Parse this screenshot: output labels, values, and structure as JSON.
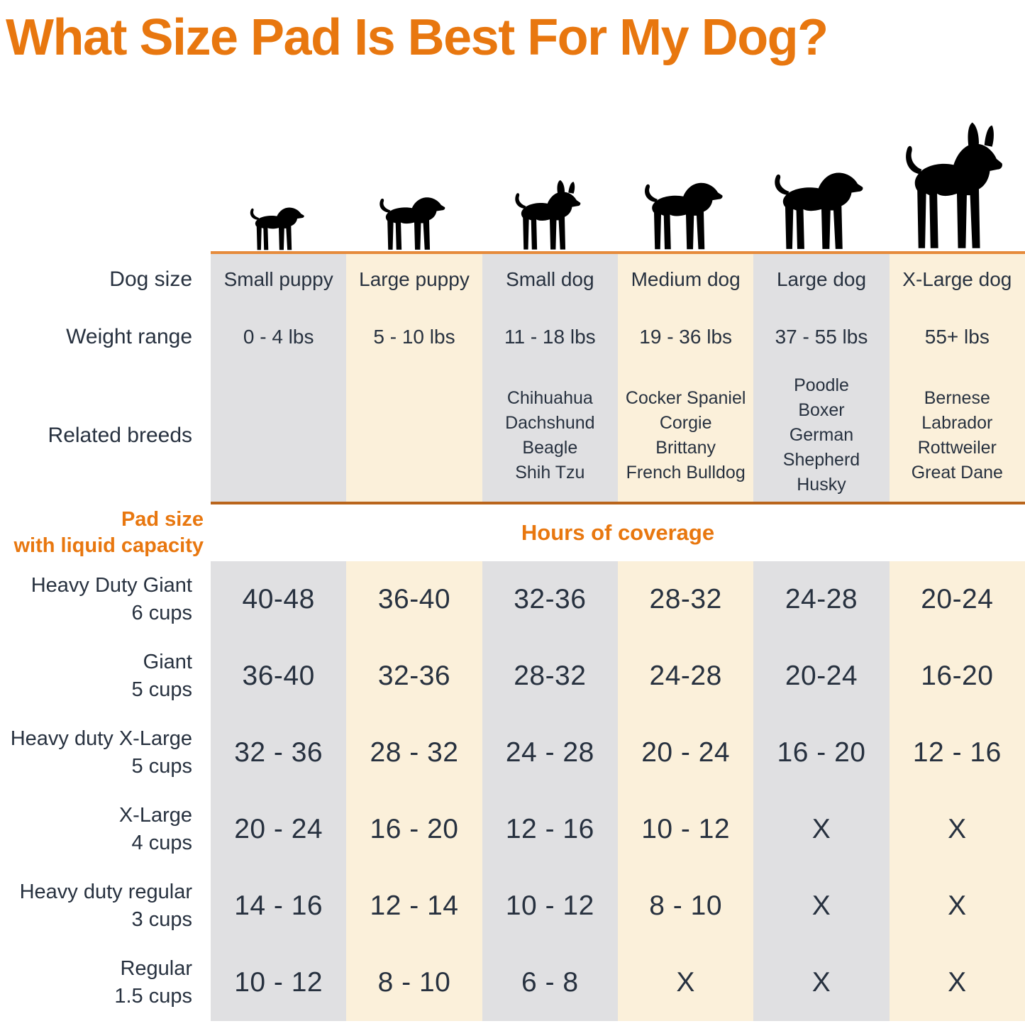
{
  "title": "What Size Pad Is Best For My Dog?",
  "row_labels": {
    "dog_size": "Dog size",
    "weight_range": "Weight range",
    "related_breeds": "Related breeds",
    "pad_size_line1": "Pad size",
    "pad_size_line2": "with liquid capacity",
    "hours_header": "Hours of coverage"
  },
  "columns": [
    {
      "dog_size": "Small puppy",
      "weight": "0 - 4 lbs",
      "breeds": [],
      "icon": "small-puppy-dog-icon"
    },
    {
      "dog_size": "Large puppy",
      "weight": "5 - 10 lbs",
      "breeds": [],
      "icon": "large-puppy-dog-icon"
    },
    {
      "dog_size": "Small dog",
      "weight": "11 - 18 lbs",
      "breeds": [
        "Chihuahua",
        "Dachshund",
        "Beagle",
        "Shih Tzu"
      ],
      "icon": "small-dog-icon"
    },
    {
      "dog_size": "Medium dog",
      "weight": "19 - 36 lbs",
      "breeds": [
        "Cocker Spaniel",
        "Corgie",
        "Brittany",
        "French Bulldog"
      ],
      "icon": "medium-dog-icon"
    },
    {
      "dog_size": "Large dog",
      "weight": "37 - 55 lbs",
      "breeds": [
        "Poodle",
        "Boxer",
        "German Shepherd",
        "Husky"
      ],
      "icon": "large-dog-icon"
    },
    {
      "dog_size": "X-Large dog",
      "weight": "55+ lbs",
      "breeds": [
        "Bernese",
        "Labrador",
        "Rottweiler",
        "Great Dane"
      ],
      "icon": "x-large-dog-icon"
    }
  ],
  "pad_rows": [
    {
      "name": "Heavy Duty Giant",
      "capacity": "6 cups",
      "values": [
        "40-48",
        "36-40",
        "32-36",
        "28-32",
        "24-28",
        "20-24"
      ]
    },
    {
      "name": "Giant",
      "capacity": "5 cups",
      "values": [
        "36-40",
        "32-36",
        "28-32",
        "24-28",
        "20-24",
        "16-20"
      ]
    },
    {
      "name": "Heavy duty X-Large",
      "capacity": "5 cups",
      "values": [
        "32 - 36",
        "28 - 32",
        "24 - 28",
        "20 - 24",
        "16 - 20",
        "12 - 16"
      ]
    },
    {
      "name": "X-Large",
      "capacity": "4 cups",
      "values": [
        "20 - 24",
        "16 - 20",
        "12 - 16",
        "10 - 12",
        "X",
        "X"
      ]
    },
    {
      "name": "Heavy duty regular",
      "capacity": "3 cups",
      "values": [
        "14 - 16",
        "12 - 14",
        "10 - 12",
        "8 - 10",
        "X",
        "X"
      ]
    },
    {
      "name": "Regular",
      "capacity": "1.5 cups",
      "values": [
        "10 - 12",
        "8 - 10",
        "6 - 8",
        "X",
        "X",
        "X"
      ]
    }
  ],
  "colors": {
    "accent_orange": "#E8770F",
    "dog_outline_orange": "#DD6E10",
    "baseline_orange": "#E68B3C",
    "separator_orange": "#B9651C",
    "column_gray": "#E0E0E2",
    "column_cream": "#FBF0DA",
    "text_dark": "#27313F"
  },
  "chart_data": {
    "type": "table",
    "title": "What Size Pad Is Best For My Dog?",
    "columns": [
      "Small puppy",
      "Large puppy",
      "Small dog",
      "Medium dog",
      "Large dog",
      "X-Large dog"
    ],
    "weight_ranges": [
      "0 - 4 lbs",
      "5 - 10 lbs",
      "11 - 18 lbs",
      "19 - 36 lbs",
      "37 - 55 lbs",
      "55+ lbs"
    ],
    "related_breeds": [
      [],
      [],
      [
        "Chihuahua",
        "Dachshund",
        "Beagle",
        "Shih Tzu"
      ],
      [
        "Cocker Spaniel",
        "Corgie",
        "Brittany",
        "French Bulldog"
      ],
      [
        "Poodle",
        "Boxer",
        "German Shepherd",
        "Husky"
      ],
      [
        "Bernese",
        "Labrador",
        "Rottweiler",
        "Great Dane"
      ]
    ],
    "hours_of_coverage_rows": [
      {
        "pad": "Heavy Duty Giant 6 cups",
        "hours": [
          "40-48",
          "36-40",
          "32-36",
          "28-32",
          "24-28",
          "20-24"
        ]
      },
      {
        "pad": "Giant 5 cups",
        "hours": [
          "36-40",
          "32-36",
          "28-32",
          "24-28",
          "20-24",
          "16-20"
        ]
      },
      {
        "pad": "Heavy duty X-Large 5 cups",
        "hours": [
          "32 - 36",
          "28 - 32",
          "24 - 28",
          "20 - 24",
          "16 - 20",
          "12 - 16"
        ]
      },
      {
        "pad": "X-Large 4 cups",
        "hours": [
          "20 - 24",
          "16 - 20",
          "12 - 16",
          "10 - 12",
          "X",
          "X"
        ]
      },
      {
        "pad": "Heavy duty regular 3 cups",
        "hours": [
          "14 - 16",
          "12 - 14",
          "10 - 12",
          "8 - 10",
          "X",
          "X"
        ]
      },
      {
        "pad": "Regular 1.5 cups",
        "hours": [
          "10 - 12",
          "8 - 10",
          "6 - 8",
          "X",
          "X",
          "X"
        ]
      }
    ]
  }
}
